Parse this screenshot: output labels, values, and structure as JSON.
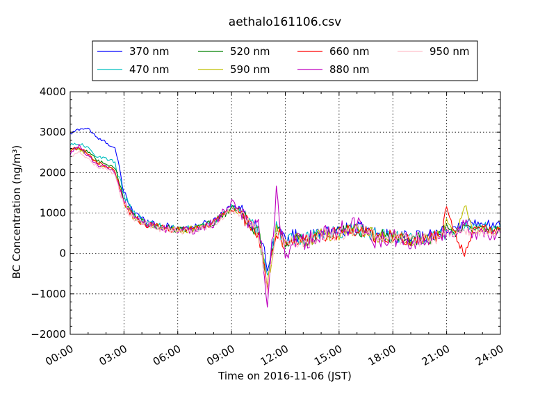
{
  "chart_data": {
    "type": "line",
    "title": "aethalo161106.csv",
    "xlabel": "Time on 2016-11-06 (JST)",
    "ylabel": "BC Concentration (ng/m³)",
    "xlim": [
      "00:00",
      "24:00"
    ],
    "ylim": [
      -2000,
      4000
    ],
    "x_ticks": [
      "00:00",
      "03:00",
      "06:00",
      "09:00",
      "12:00",
      "15:00",
      "18:00",
      "21:00",
      "24:00"
    ],
    "y_ticks": [
      -2000,
      -1000,
      0,
      1000,
      2000,
      3000,
      4000
    ],
    "y_tick_labels": [
      "−2000",
      "−1000",
      "0",
      "1000",
      "2000",
      "3000",
      "4000"
    ],
    "grid": true,
    "legend_position": "top, above plot",
    "x": [
      "00:00",
      "00:30",
      "01:00",
      "01:30",
      "02:00",
      "02:30",
      "03:00",
      "03:30",
      "04:00",
      "05:00",
      "06:00",
      "07:00",
      "08:00",
      "09:00",
      "09:30",
      "10:00",
      "10:30",
      "11:00",
      "11:30",
      "12:00",
      "12:30",
      "13:00",
      "14:00",
      "15:00",
      "16:00",
      "17:00",
      "18:00",
      "19:00",
      "20:00",
      "20:45",
      "21:00",
      "21:30",
      "22:00",
      "22:30",
      "23:00",
      "23:30",
      "24:00"
    ],
    "series": [
      {
        "name": "370 nm",
        "color": "#0000ff",
        "values": [
          2950,
          3080,
          3100,
          2850,
          2750,
          2600,
          1500,
          1050,
          850,
          700,
          620,
          650,
          800,
          1200,
          1100,
          800,
          600,
          -300,
          700,
          300,
          450,
          350,
          500,
          550,
          650,
          480,
          450,
          380,
          420,
          500,
          550,
          600,
          800,
          750,
          800,
          700,
          740
        ]
      },
      {
        "name": "470 nm",
        "color": "#00bfbf",
        "values": [
          2700,
          2720,
          2600,
          2400,
          2350,
          2250,
          1450,
          1000,
          800,
          680,
          600,
          640,
          780,
          1150,
          1050,
          750,
          550,
          -600,
          650,
          250,
          400,
          330,
          480,
          520,
          620,
          460,
          430,
          360,
          400,
          480,
          500,
          500,
          700,
          650,
          700,
          620,
          650
        ]
      },
      {
        "name": "520 nm",
        "color": "#008000",
        "values": [
          2600,
          2600,
          2500,
          2300,
          2200,
          2100,
          1300,
          950,
          780,
          650,
          580,
          620,
          760,
          1120,
          1020,
          720,
          520,
          -700,
          620,
          220,
          380,
          300,
          460,
          500,
          600,
          450,
          420,
          350,
          380,
          460,
          700,
          480,
          650,
          600,
          650,
          580,
          600
        ]
      },
      {
        "name": "590 nm",
        "color": "#bfbf00",
        "values": [
          2550,
          2580,
          2450,
          2250,
          2150,
          2050,
          1250,
          920,
          760,
          640,
          570,
          610,
          750,
          1100,
          1000,
          700,
          500,
          -800,
          600,
          200,
          360,
          290,
          450,
          490,
          590,
          440,
          410,
          340,
          370,
          450,
          900,
          470,
          1200,
          580,
          630,
          560,
          580
        ]
      },
      {
        "name": "660 nm",
        "color": "#ff0000",
        "values": [
          2550,
          2620,
          2450,
          2250,
          2150,
          2050,
          1250,
          920,
          760,
          640,
          570,
          610,
          750,
          1100,
          1000,
          700,
          500,
          -800,
          600,
          200,
          360,
          290,
          450,
          490,
          590,
          440,
          410,
          340,
          370,
          450,
          1100,
          470,
          -50,
          600,
          640,
          560,
          580
        ]
      },
      {
        "name": "880 nm",
        "color": "#bf00bf",
        "values": [
          2450,
          2650,
          2400,
          2200,
          2150,
          2000,
          1250,
          900,
          750,
          630,
          560,
          600,
          740,
          1250,
          1000,
          700,
          800,
          -1150,
          1450,
          -200,
          350,
          280,
          500,
          600,
          700,
          350,
          380,
          330,
          360,
          430,
          600,
          420,
          800,
          450,
          500,
          450,
          480
        ]
      },
      {
        "name": "950 nm",
        "color": "#ffc0cb",
        "values": [
          2400,
          2500,
          2350,
          2150,
          2100,
          1950,
          1200,
          880,
          740,
          620,
          550,
          590,
          730,
          1080,
          980,
          680,
          480,
          -850,
          580,
          180,
          340,
          270,
          430,
          470,
          570,
          420,
          400,
          320,
          350,
          420,
          550,
          400,
          550,
          500,
          520,
          480,
          500
        ]
      }
    ]
  }
}
